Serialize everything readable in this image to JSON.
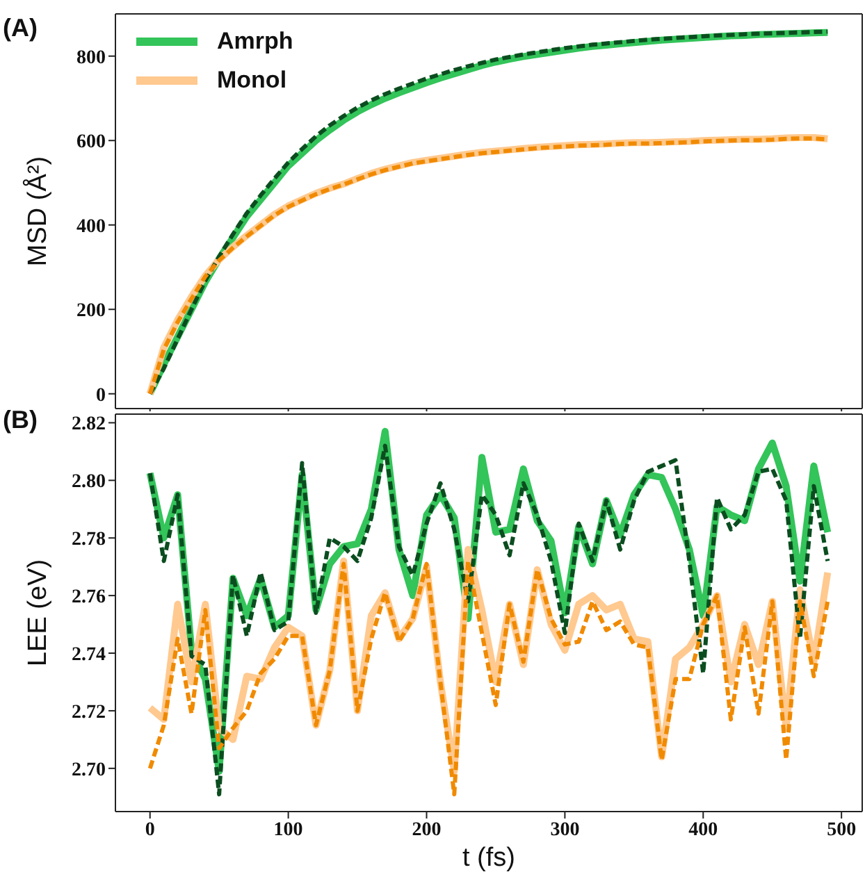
{
  "chart_data": [
    {
      "type": "line",
      "title": "(A)",
      "ylabel": "MSD (Å²)",
      "x": [
        0,
        10,
        20,
        30,
        40,
        50,
        60,
        70,
        80,
        90,
        100,
        110,
        120,
        130,
        140,
        150,
        160,
        170,
        180,
        190,
        200,
        210,
        220,
        230,
        240,
        250,
        260,
        270,
        280,
        290,
        300,
        310,
        320,
        330,
        340,
        350,
        360,
        370,
        380,
        390,
        400,
        410,
        420,
        430,
        440,
        450,
        460,
        470,
        480,
        490
      ],
      "xlim": [
        -25,
        515
      ],
      "xticks": [
        0,
        100,
        200,
        300,
        400,
        500
      ],
      "ylim": [
        -35,
        900
      ],
      "yticks": [
        0,
        200,
        400,
        600,
        800
      ],
      "tick_labels": "y",
      "grid": false,
      "legend": "top left",
      "marker": "none",
      "series": [
        {
          "name": "Amrph",
          "color": "#33c45a",
          "line_style": "solid",
          "values": [
            0,
            70,
            135,
            200,
            265,
            320,
            370,
            420,
            460,
            500,
            540,
            570,
            600,
            625,
            648,
            668,
            685,
            700,
            713,
            725,
            737,
            748,
            758,
            768,
            778,
            786,
            793,
            799,
            804,
            809,
            814,
            819,
            823,
            826,
            829,
            832,
            835,
            838,
            840,
            842,
            844,
            846,
            848,
            849,
            851,
            852,
            853,
            854,
            855,
            856
          ]
        },
        {
          "color": "#0b4d1f",
          "line_style": "dashed",
          "values": [
            0,
            60,
            130,
            200,
            268,
            325,
            378,
            428,
            470,
            510,
            548,
            580,
            610,
            636,
            658,
            678,
            695,
            710,
            723,
            735,
            747,
            757,
            767,
            776,
            784,
            792,
            798,
            804,
            809,
            814,
            819,
            823,
            827,
            830,
            833,
            836,
            839,
            841,
            843,
            845,
            847,
            849,
            850,
            852,
            853,
            854,
            855,
            856,
            857,
            858
          ]
        },
        {
          "name": "Monol",
          "color": "#ffc98f",
          "line_style": "solid",
          "values": [
            0,
            110,
            175,
            230,
            280,
            318,
            348,
            375,
            400,
            425,
            445,
            460,
            475,
            487,
            497,
            510,
            522,
            532,
            540,
            548,
            553,
            558,
            563,
            568,
            572,
            575,
            578,
            581,
            584,
            586,
            588,
            590,
            591,
            592,
            594,
            595,
            595,
            596,
            597,
            598,
            600,
            601,
            602,
            603,
            603,
            604,
            606,
            607,
            607,
            604
          ]
        },
        {
          "color": "#f08a00",
          "line_style": "dashed",
          "values": [
            0,
            105,
            170,
            225,
            278,
            316,
            346,
            373,
            398,
            423,
            443,
            458,
            473,
            485,
            496,
            508,
            520,
            530,
            538,
            546,
            551,
            556,
            561,
            566,
            570,
            573,
            576,
            579,
            582,
            584,
            586,
            588,
            589,
            590,
            592,
            593,
            593,
            594,
            595,
            596,
            598,
            599,
            600,
            601,
            601,
            602,
            604,
            605,
            605,
            603
          ]
        }
      ]
    },
    {
      "type": "line",
      "title": "(B)",
      "xlabel": "t (fs)",
      "ylabel": "LEE (eV)",
      "x": [
        0,
        10,
        20,
        30,
        40,
        50,
        60,
        70,
        80,
        90,
        100,
        110,
        120,
        130,
        140,
        150,
        160,
        170,
        180,
        190,
        200,
        210,
        220,
        230,
        240,
        250,
        260,
        270,
        280,
        290,
        300,
        310,
        320,
        330,
        340,
        350,
        360,
        370,
        380,
        390,
        400,
        410,
        420,
        430,
        440,
        450,
        460,
        470,
        480,
        490
      ],
      "xlim": [
        -25,
        515
      ],
      "xticks": [
        0,
        100,
        200,
        300,
        400,
        500
      ],
      "ylim": [
        2.685,
        2.823
      ],
      "yticks": [
        {
          "value": 2.7,
          "label": "2.70"
        },
        {
          "value": 2.72,
          "label": "2.72"
        },
        {
          "value": 2.74,
          "label": "2.74"
        },
        {
          "value": 2.76,
          "label": "2.76"
        },
        {
          "value": 2.78,
          "label": "2.78"
        },
        {
          "value": 2.8,
          "label": "2.80"
        },
        {
          "value": 2.82,
          "label": "2.82"
        }
      ],
      "grid": false,
      "marker": "none",
      "series": [
        {
          "color": "#33c45a",
          "line_style": "solid",
          "values": [
            2.8025,
            2.78,
            2.795,
            2.741,
            2.731,
            2.699,
            2.766,
            2.753,
            2.766,
            2.749,
            2.753,
            2.802,
            2.755,
            2.771,
            2.777,
            2.778,
            2.79,
            2.817,
            2.776,
            2.76,
            2.788,
            2.795,
            2.787,
            2.752,
            2.808,
            2.782,
            2.783,
            2.804,
            2.786,
            2.779,
            2.754,
            2.784,
            2.771,
            2.793,
            2.781,
            2.795,
            2.802,
            2.801,
            2.79,
            2.776,
            2.753,
            2.791,
            2.788,
            2.786,
            2.804,
            2.813,
            2.798,
            2.765,
            2.805,
            2.782
          ]
        },
        {
          "color": "#0b4d1f",
          "line_style": "dashed",
          "values": [
            2.8025,
            2.772,
            2.795,
            2.739,
            2.736,
            2.691,
            2.767,
            2.746,
            2.768,
            2.748,
            2.751,
            2.806,
            2.754,
            2.78,
            2.777,
            2.772,
            2.787,
            2.812,
            2.777,
            2.767,
            2.785,
            2.799,
            2.783,
            2.758,
            2.795,
            2.788,
            2.774,
            2.799,
            2.788,
            2.772,
            2.747,
            2.785,
            2.772,
            2.793,
            2.776,
            2.793,
            2.803,
            2.805,
            2.807,
            2.772,
            2.733,
            2.794,
            2.783,
            2.788,
            2.803,
            2.804,
            2.793,
            2.745,
            2.798,
            2.772
          ]
        },
        {
          "color": "#ffc98f",
          "line_style": "solid",
          "values": [
            2.721,
            2.717,
            2.757,
            2.73,
            2.757,
            2.714,
            2.71,
            2.732,
            2.731,
            2.742,
            2.749,
            2.746,
            2.715,
            2.734,
            2.772,
            2.72,
            2.753,
            2.761,
            2.745,
            2.752,
            2.77,
            2.73,
            2.699,
            2.776,
            2.755,
            2.73,
            2.757,
            2.736,
            2.769,
            2.75,
            2.741,
            2.757,
            2.76,
            2.755,
            2.757,
            2.745,
            2.744,
            2.704,
            2.738,
            2.742,
            2.75,
            2.76,
            2.73,
            2.75,
            2.736,
            2.758,
            2.714,
            2.762,
            2.737,
            2.768
          ]
        },
        {
          "color": "#f08a00",
          "line_style": "dashed",
          "values": [
            2.7,
            2.715,
            2.745,
            2.719,
            2.755,
            2.707,
            2.714,
            2.72,
            2.733,
            2.738,
            2.746,
            2.746,
            2.715,
            2.734,
            2.771,
            2.72,
            2.745,
            2.761,
            2.744,
            2.752,
            2.771,
            2.73,
            2.691,
            2.772,
            2.747,
            2.722,
            2.757,
            2.737,
            2.769,
            2.752,
            2.743,
            2.744,
            2.758,
            2.748,
            2.751,
            2.743,
            2.742,
            2.703,
            2.731,
            2.731,
            2.75,
            2.76,
            2.717,
            2.749,
            2.719,
            2.758,
            2.703,
            2.758,
            2.732,
            2.758
          ]
        }
      ]
    }
  ]
}
